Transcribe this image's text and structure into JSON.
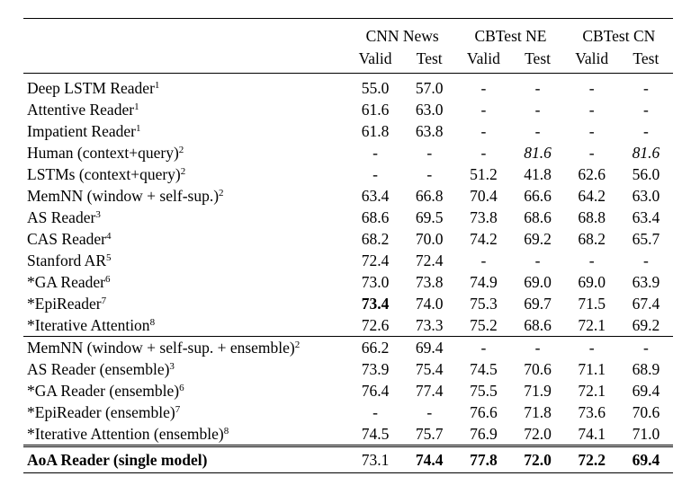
{
  "headers": {
    "groups": [
      "CNN News",
      "CBTest NE",
      "CBTest CN"
    ],
    "sub": [
      "Valid",
      "Test",
      "Valid",
      "Test",
      "Valid",
      "Test"
    ]
  },
  "section1": [
    {
      "name": "Deep LSTM Reader",
      "sup": "1",
      "vals": [
        "55.0",
        "57.0",
        "-",
        "-",
        "-",
        "-"
      ],
      "style": [
        "",
        "",
        "",
        "",
        "",
        ""
      ]
    },
    {
      "name": "Attentive Reader",
      "sup": "1",
      "vals": [
        "61.6",
        "63.0",
        "-",
        "-",
        "-",
        "-"
      ],
      "style": [
        "",
        "",
        "",
        "",
        "",
        ""
      ]
    },
    {
      "name": "Impatient Reader",
      "sup": "1",
      "vals": [
        "61.8",
        "63.8",
        "-",
        "-",
        "-",
        "-"
      ],
      "style": [
        "",
        "",
        "",
        "",
        "",
        ""
      ]
    },
    {
      "name": "Human (context+query)",
      "sup": "2",
      "vals": [
        "-",
        "-",
        "-",
        "81.6",
        "-",
        "81.6"
      ],
      "style": [
        "",
        "",
        "",
        "ital",
        "",
        "ital"
      ]
    },
    {
      "name": "LSTMs (context+query)",
      "sup": "2",
      "vals": [
        "-",
        "-",
        "51.2",
        "41.8",
        "62.6",
        "56.0"
      ],
      "style": [
        "",
        "",
        "",
        "",
        "",
        ""
      ]
    },
    {
      "name": "MemNN (window + self-sup.)",
      "sup": "2",
      "vals": [
        "63.4",
        "66.8",
        "70.4",
        "66.6",
        "64.2",
        "63.0"
      ],
      "style": [
        "",
        "",
        "",
        "",
        "",
        ""
      ]
    },
    {
      "name": "AS Reader",
      "sup": "3",
      "vals": [
        "68.6",
        "69.5",
        "73.8",
        "68.6",
        "68.8",
        "63.4"
      ],
      "style": [
        "",
        "",
        "",
        "",
        "",
        ""
      ]
    },
    {
      "name": "CAS Reader",
      "sup": "4",
      "vals": [
        "68.2",
        "70.0",
        "74.2",
        "69.2",
        "68.2",
        "65.7"
      ],
      "style": [
        "",
        "",
        "",
        "",
        "",
        ""
      ]
    },
    {
      "name": "Stanford AR",
      "sup": "5",
      "vals": [
        "72.4",
        "72.4",
        "-",
        "-",
        "-",
        "-"
      ],
      "style": [
        "",
        "",
        "",
        "",
        "",
        ""
      ]
    },
    {
      "name": "*GA Reader",
      "sup": "6",
      "vals": [
        "73.0",
        "73.8",
        "74.9",
        "69.0",
        "69.0",
        "63.9"
      ],
      "style": [
        "",
        "",
        "",
        "",
        "",
        ""
      ]
    },
    {
      "name": "*EpiReader",
      "sup": "7",
      "vals": [
        "73.4",
        "74.0",
        "75.3",
        "69.7",
        "71.5",
        "67.4"
      ],
      "style": [
        "bold",
        "",
        "",
        "",
        "",
        ""
      ]
    },
    {
      "name": "*Iterative Attention",
      "sup": "8",
      "vals": [
        "72.6",
        "73.3",
        "75.2",
        "68.6",
        "72.1",
        "69.2"
      ],
      "style": [
        "",
        "",
        "",
        "",
        "",
        ""
      ]
    }
  ],
  "section2": [
    {
      "name": "MemNN (window + self-sup. + ensemble)",
      "sup": "2",
      "vals": [
        "66.2",
        "69.4",
        "-",
        "-",
        "-",
        "-"
      ],
      "style": [
        "",
        "",
        "",
        "",
        "",
        ""
      ]
    },
    {
      "name": "AS Reader (ensemble)",
      "sup": "3",
      "vals": [
        "73.9",
        "75.4",
        "74.5",
        "70.6",
        "71.1",
        "68.9"
      ],
      "style": [
        "",
        "",
        "",
        "",
        "",
        ""
      ]
    },
    {
      "name": "*GA Reader (ensemble)",
      "sup": "6",
      "vals": [
        "76.4",
        "77.4",
        "75.5",
        "71.9",
        "72.1",
        "69.4"
      ],
      "style": [
        "",
        "",
        "",
        "",
        "",
        ""
      ]
    },
    {
      "name": "*EpiReader (ensemble)",
      "sup": "7",
      "vals": [
        "-",
        "-",
        "76.6",
        "71.8",
        "73.6",
        "70.6"
      ],
      "style": [
        "",
        "",
        "",
        "",
        "",
        ""
      ]
    },
    {
      "name": "*Iterative Attention (ensemble)",
      "sup": "8",
      "vals": [
        "74.5",
        "75.7",
        "76.9",
        "72.0",
        "74.1",
        "71.0"
      ],
      "style": [
        "",
        "",
        "",
        "",
        "",
        ""
      ]
    }
  ],
  "final": {
    "name": "AoA Reader (single model)",
    "vals": [
      "73.1",
      "74.4",
      "77.8",
      "72.0",
      "72.2",
      "69.4"
    ],
    "style": [
      "",
      "bold",
      "bold",
      "bold",
      "bold",
      "bold"
    ]
  }
}
